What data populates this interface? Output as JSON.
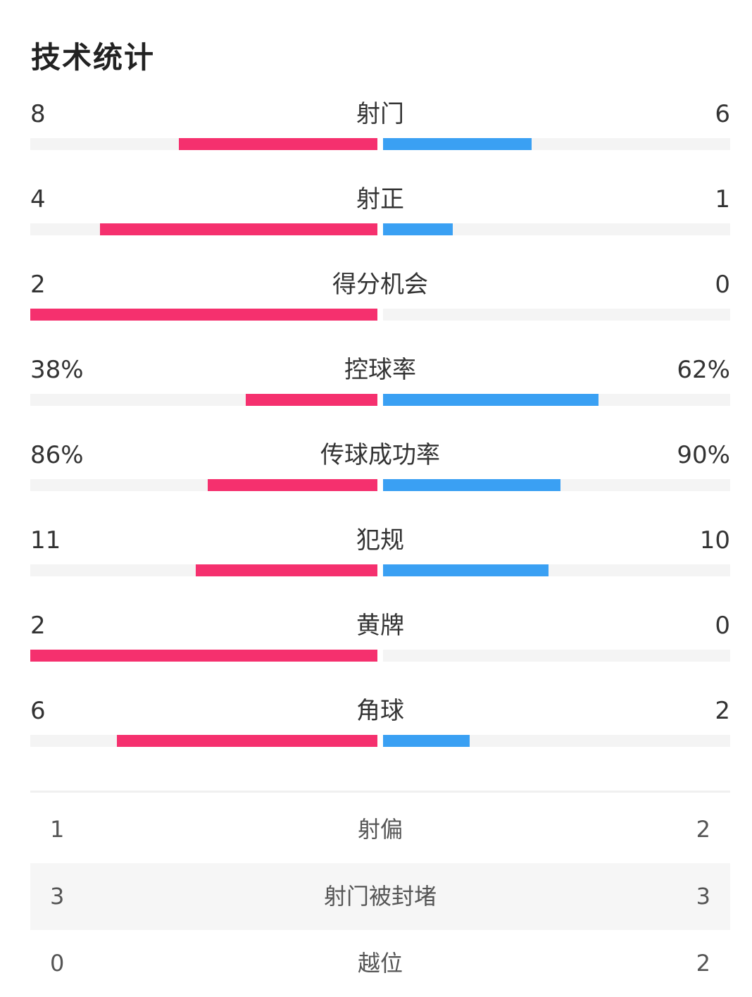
{
  "title": "技术统计",
  "colors": {
    "home": "#f5306e",
    "away": "#3aa0f3",
    "track": "#f4f4f4"
  },
  "stats": [
    {
      "label": "射门",
      "home": "8",
      "away": "6",
      "home_value": 8,
      "away_value": 6
    },
    {
      "label": "射正",
      "home": "4",
      "away": "1",
      "home_value": 4,
      "away_value": 1
    },
    {
      "label": "得分机会",
      "home": "2",
      "away": "0",
      "home_value": 2,
      "away_value": 0
    },
    {
      "label": "控球率",
      "home": "38%",
      "away": "62%",
      "home_value": 38,
      "away_value": 62
    },
    {
      "label": "传球成功率",
      "home": "86%",
      "away": "90%",
      "home_value": 86,
      "away_value": 90
    },
    {
      "label": "犯规",
      "home": "11",
      "away": "10",
      "home_value": 11,
      "away_value": 10
    },
    {
      "label": "黄牌",
      "home": "2",
      "away": "0",
      "home_value": 2,
      "away_value": 0
    },
    {
      "label": "角球",
      "home": "6",
      "away": "2",
      "home_value": 6,
      "away_value": 2
    }
  ],
  "extra": [
    {
      "label": "射偏",
      "home": "1",
      "away": "2"
    },
    {
      "label": "射门被封堵",
      "home": "3",
      "away": "3"
    },
    {
      "label": "越位",
      "home": "0",
      "away": "2"
    }
  ]
}
